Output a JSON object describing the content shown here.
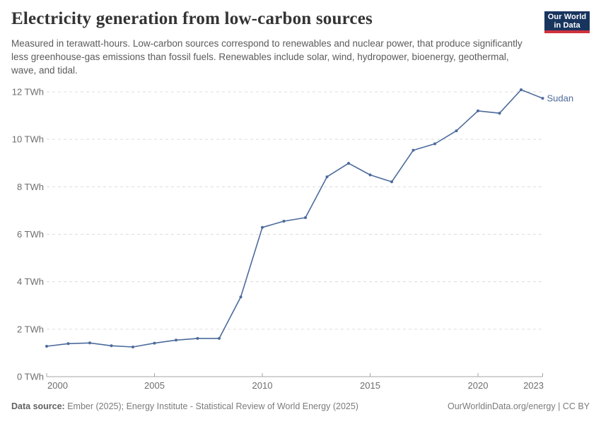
{
  "header": {
    "title": "Electricity generation from low-carbon sources",
    "subtitle": "Measured in terawatt-hours. Low-carbon sources correspond to renewables and nuclear power, that produce significantly less greenhouse-gas emissions than fossil fuels. Renewables include solar, wind, hydropower, bioenergy, geothermal, wave, and tidal.",
    "logo": {
      "line1": "Our World",
      "line2": "in Data",
      "bg_color": "#18355e",
      "accent_color": "#cf303e"
    }
  },
  "chart_data": {
    "type": "line",
    "title": "Electricity generation from low-carbon sources",
    "unit": "TWh",
    "x": [
      2000,
      2001,
      2002,
      2003,
      2004,
      2005,
      2006,
      2007,
      2008,
      2009,
      2010,
      2011,
      2012,
      2013,
      2014,
      2015,
      2016,
      2017,
      2018,
      2019,
      2020,
      2021,
      2022,
      2023
    ],
    "series": [
      {
        "name": "Sudan",
        "color": "#4c6a9c",
        "values": [
          1.28,
          1.39,
          1.42,
          1.3,
          1.25,
          1.41,
          1.54,
          1.61,
          1.61,
          3.36,
          6.29,
          6.55,
          6.7,
          8.42,
          8.99,
          8.5,
          8.21,
          9.54,
          9.81,
          10.36,
          11.2,
          11.1,
          12.09,
          11.73
        ]
      }
    ],
    "ylim": [
      0,
      12
    ],
    "yticks": [
      0,
      2,
      4,
      6,
      8,
      10,
      12
    ],
    "ytick_suffix": " TWh",
    "xticks": [
      2000,
      2005,
      2010,
      2015,
      2020,
      2023
    ],
    "grid": "horizontal-dashed",
    "legend_position": "end-of-line-label",
    "colors": {
      "grid": "#dcdcdc",
      "axis": "#a5a5a5",
      "tick_label": "#6e6e6e"
    }
  },
  "footer": {
    "datasource_label": "Data source:",
    "datasource_text": " Ember (2025); Energy Institute - Statistical Review of World Energy (2025)",
    "credit": "OurWorldinData.org/energy | CC BY"
  }
}
